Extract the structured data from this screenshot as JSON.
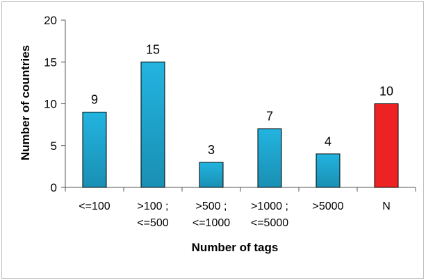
{
  "chart_data": {
    "type": "bar",
    "title": "",
    "xlabel": "Number of tags",
    "ylabel": "Number of countries",
    "ylim": [
      0,
      20
    ],
    "yticks": [
      "0",
      "5",
      "10",
      "15",
      "20"
    ],
    "categories": [
      [
        "<=100"
      ],
      [
        ">100 ;",
        "<=500"
      ],
      [
        ">500 ;",
        "<=1000"
      ],
      [
        ">1000 ;",
        "<=5000"
      ],
      [
        ">5000"
      ],
      [
        "N"
      ]
    ],
    "values": [
      9,
      15,
      3,
      7,
      4,
      10
    ],
    "data_labels": [
      "9",
      "15",
      "3",
      "7",
      "4",
      "10"
    ],
    "bar_colors": [
      "#1aa3cc",
      "#1aa3cc",
      "#1aa3cc",
      "#1aa3cc",
      "#1aa3cc",
      "#ee2222"
    ],
    "grid": false,
    "legend": "none"
  }
}
